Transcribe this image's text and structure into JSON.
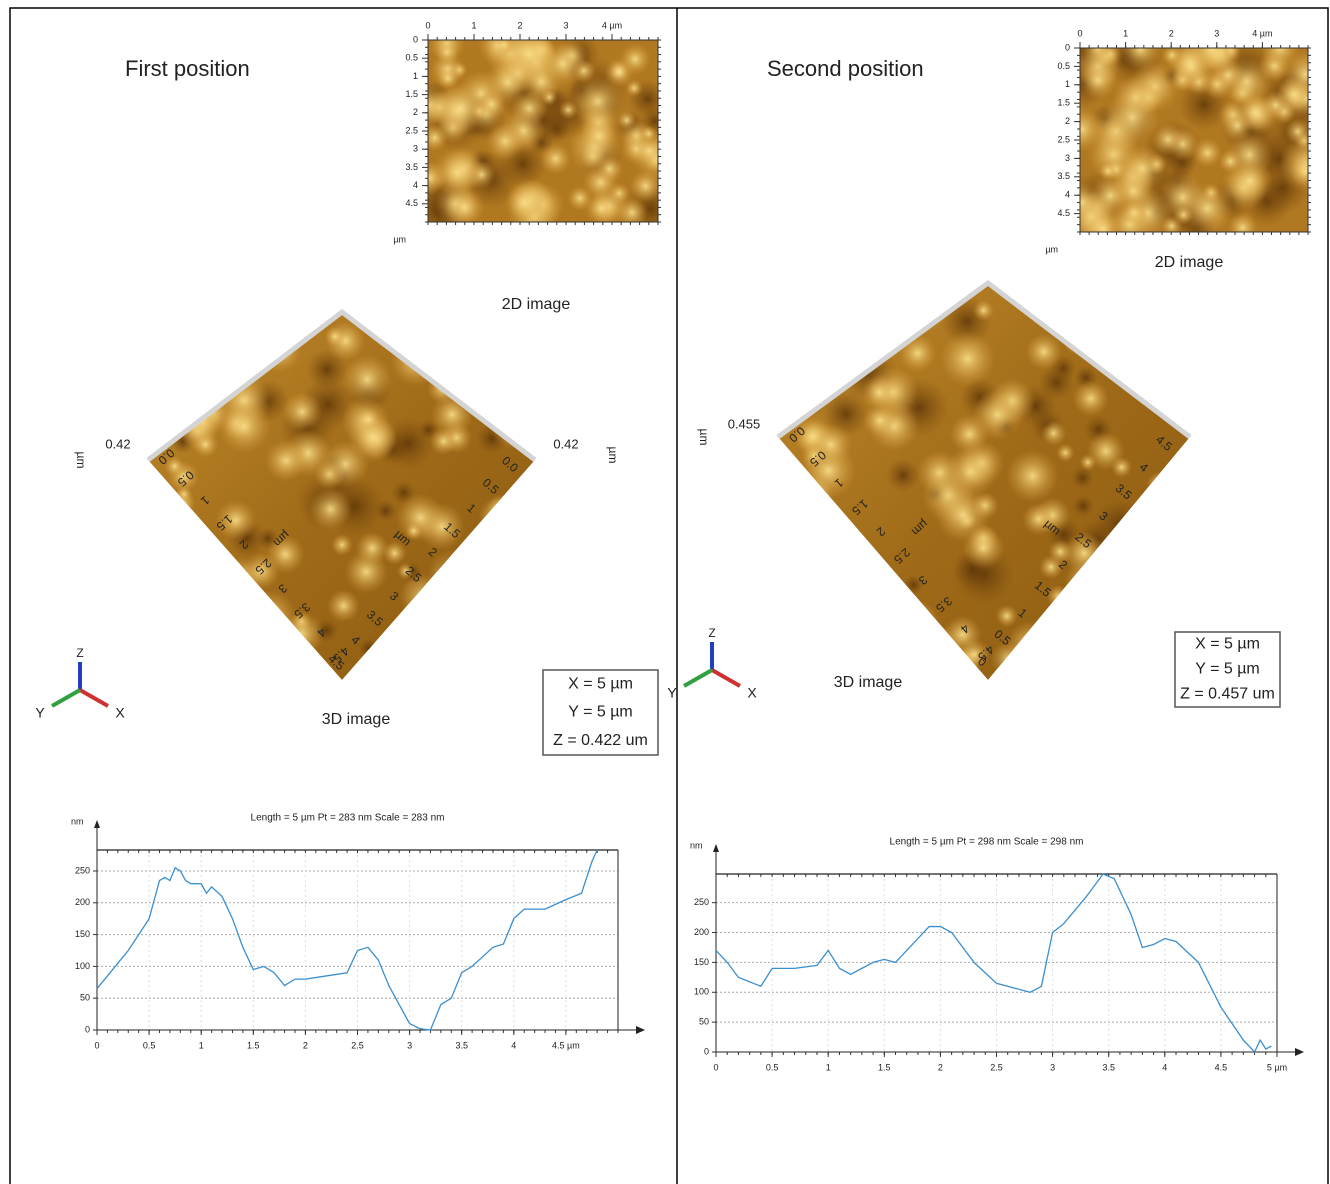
{
  "panels": [
    {
      "title": "First position",
      "image_2d": {
        "caption": "2D image",
        "unit": "µm",
        "xlim": [
          0,
          5
        ],
        "ylim": [
          0,
          5
        ],
        "xticks": [
          0,
          1,
          2,
          3,
          {
            "value": 4,
            "label": "4 µm"
          }
        ],
        "yticks": [
          0,
          0.5,
          1,
          1.5,
          2,
          2.5,
          3,
          3.5,
          4,
          4.5
        ]
      },
      "image_3d": {
        "caption": "3D image",
        "unit": "µm",
        "z_label": "0.42",
        "left_axis": [
          "0.0",
          "0.5",
          "1",
          "1.5",
          "2",
          "2.5",
          "3",
          "3.5",
          "4",
          "4.5"
        ],
        "right_axis": [
          "4.5",
          "4",
          "3.5",
          "3",
          "2.5",
          "2",
          "1.5",
          "1",
          "0.5",
          "0.0"
        ],
        "axes_icon": {
          "x": "X",
          "y": "Y",
          "z": "Z"
        },
        "scale": [
          "X = 5 µm",
          "Y = 5 µm",
          "Z = 0.422 um"
        ]
      },
      "profile": {
        "type": "line",
        "title": "Length = 5 µm  Pt = 283 nm  Scale = 283 nm",
        "y_label": "nm",
        "color": "#3a8fd0",
        "grid": true,
        "x": [
          0,
          0.1,
          0.2,
          0.3,
          0.4,
          0.5,
          0.6,
          0.65,
          0.7,
          0.75,
          0.8,
          0.85,
          0.9,
          1.0,
          1.05,
          1.1,
          1.2,
          1.3,
          1.4,
          1.5,
          1.6,
          1.7,
          1.8,
          1.9,
          2.0,
          2.2,
          2.4,
          2.5,
          2.6,
          2.7,
          2.8,
          2.9,
          3.0,
          3.1,
          3.2,
          3.3,
          3.4,
          3.5,
          3.6,
          3.8,
          3.9,
          4.0,
          4.1,
          4.3,
          4.5,
          4.65,
          4.75,
          4.8
        ],
        "values": [
          65,
          85,
          105,
          125,
          150,
          175,
          235,
          240,
          235,
          255,
          250,
          235,
          230,
          230,
          215,
          225,
          210,
          175,
          130,
          95,
          100,
          90,
          70,
          80,
          80,
          85,
          90,
          125,
          130,
          110,
          70,
          40,
          10,
          2,
          0,
          40,
          50,
          90,
          100,
          130,
          135,
          175,
          190,
          190,
          205,
          215,
          265,
          283
        ],
        "xlim": [
          0,
          5
        ],
        "ylim": [
          0,
          283
        ],
        "xticks": [
          0,
          0.5,
          1,
          1.5,
          2,
          2.5,
          3,
          3.5,
          4,
          {
            "value": 4.5,
            "label": "4.5 µm"
          }
        ],
        "yticks": [
          0,
          50,
          100,
          150,
          200,
          250
        ]
      }
    },
    {
      "title": "Second position",
      "image_2d": {
        "caption": "2D image",
        "unit": "µm",
        "xlim": [
          0,
          5
        ],
        "ylim": [
          0,
          5
        ],
        "xticks": [
          0,
          1,
          2,
          3,
          {
            "value": 4,
            "label": "4 µm"
          }
        ],
        "yticks": [
          0,
          0.5,
          1,
          1.5,
          2,
          2.5,
          3,
          3.5,
          4,
          4.5
        ]
      },
      "image_3d": {
        "caption": "3D image",
        "unit": "µm",
        "z_label": "0.455",
        "left_axis": [
          "0.0",
          "0.5",
          "1",
          "1.5",
          "2",
          "2.5",
          "3",
          "3.5",
          "4",
          "4.5"
        ],
        "right_axis": [
          "0",
          "0.5",
          "1",
          "1.5",
          "2",
          "2.5",
          "3",
          "3.5",
          "4",
          "4.5"
        ],
        "axes_icon": {
          "x": "X",
          "y": "Y",
          "z": "Z"
        },
        "scale": [
          "X = 5 µm",
          "Y = 5 µm",
          "Z = 0.457 um"
        ]
      },
      "profile": {
        "type": "line",
        "title": "Length = 5 µm  Pt = 298 nm  Scale = 298 nm",
        "y_label": "nm",
        "color": "#3a8fd0",
        "grid": true,
        "x": [
          0,
          0.1,
          0.2,
          0.4,
          0.5,
          0.7,
          0.9,
          1.0,
          1.1,
          1.2,
          1.4,
          1.5,
          1.6,
          1.7,
          1.9,
          2.0,
          2.1,
          2.3,
          2.5,
          2.8,
          2.9,
          3.0,
          3.1,
          3.3,
          3.45,
          3.55,
          3.7,
          3.8,
          3.9,
          4.0,
          4.1,
          4.3,
          4.5,
          4.7,
          4.8,
          4.85,
          4.9,
          4.95
        ],
        "values": [
          170,
          150,
          125,
          110,
          140,
          140,
          145,
          170,
          140,
          130,
          150,
          155,
          150,
          170,
          210,
          210,
          200,
          150,
          115,
          100,
          110,
          200,
          215,
          260,
          298,
          290,
          230,
          175,
          180,
          190,
          185,
          150,
          75,
          20,
          0,
          20,
          5,
          10
        ],
        "xlim": [
          0,
          5
        ],
        "ylim": [
          0,
          298
        ],
        "xticks": [
          0,
          0.5,
          1,
          1.5,
          2,
          2.5,
          3,
          3.5,
          4,
          4.5,
          {
            "value": 5,
            "label": "5 µm"
          }
        ],
        "yticks": [
          0,
          50,
          100,
          150,
          200,
          250
        ]
      }
    }
  ]
}
